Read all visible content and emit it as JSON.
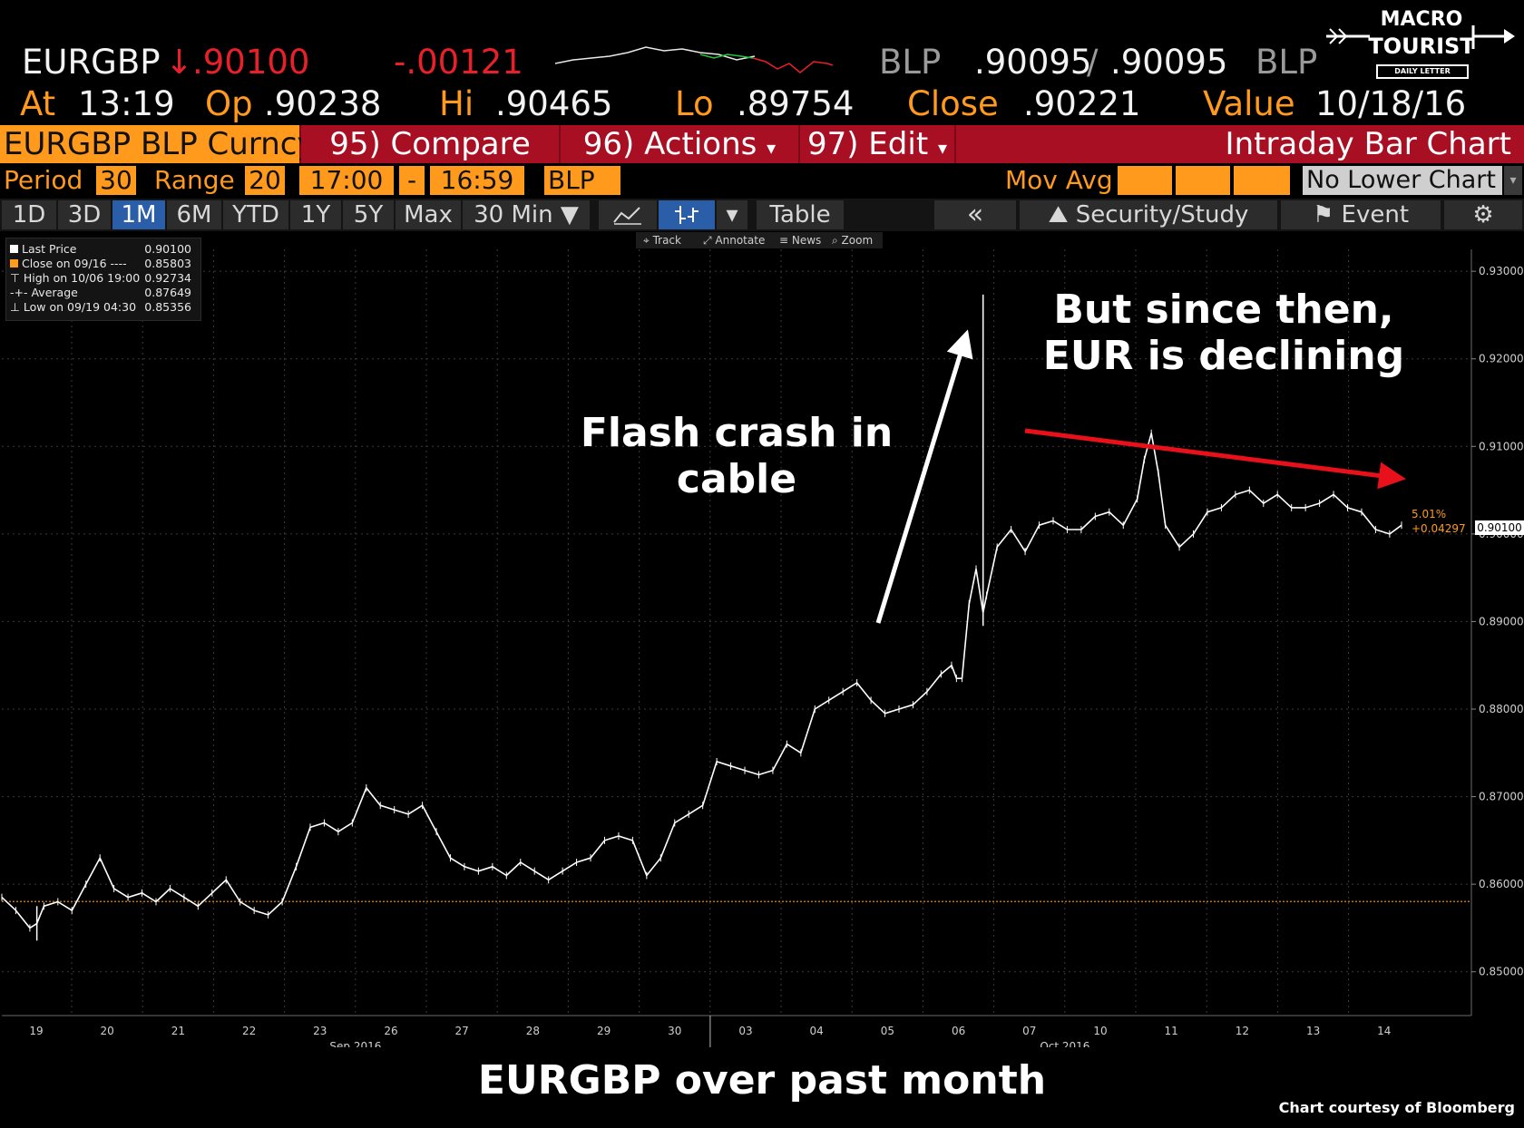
{
  "header": {
    "symbol": "EURGBP",
    "direction_arrow": "↓",
    "last": ".90100",
    "change": "-.00121",
    "bid_source": "BLP",
    "bid": ".90095",
    "separator": "/",
    "ask": ".90095",
    "ask_source": "BLP",
    "at_label": "At",
    "time": "13:19",
    "op_label": "Op",
    "open": ".90238",
    "hi_label": "Hi",
    "high": ".90465",
    "lo_label": "Lo",
    "low": ".89754",
    "close_label": "Close",
    "close": ".90221",
    "value_label": "Value",
    "value_date": "10/18/16"
  },
  "logo": {
    "line1": "MACRO",
    "line2": "TOURIST",
    "line3": "DAILY LETTER"
  },
  "function_bar": {
    "security": "EURGBP BLP Curncy",
    "compare": "95) Compare",
    "actions": "96) Actions",
    "edit": "97) Edit",
    "chart_type": "Intraday Bar Chart"
  },
  "period_bar": {
    "period_label": "Period",
    "period_value": "30",
    "range_label": "Range",
    "range_value": "20",
    "start_time": "17:00",
    "dash": "-",
    "end_time": "16:59",
    "source": "BLP",
    "mov_avg_label": "Mov Avg",
    "lower_chart": "No Lower Chart"
  },
  "tabs": {
    "ranges": [
      "1D",
      "3D",
      "1M",
      "6M",
      "YTD",
      "1Y",
      "5Y",
      "Max"
    ],
    "active": "1M",
    "interval": "30 Min ▼",
    "table": "Table",
    "back": "«",
    "security_study": "Security/Study",
    "event": "Event"
  },
  "chart_toolbar": {
    "track": "Track",
    "annotate": "Annotate",
    "news": "News",
    "zoom": "Zoom"
  },
  "legend": [
    {
      "label": "Last Price",
      "value": "0.90100"
    },
    {
      "label": "Close on 09/16 ----",
      "value": "0.85803"
    },
    {
      "label": "High on 10/06 19:00",
      "value": "0.92734"
    },
    {
      "label": "Average",
      "value": "0.87649"
    },
    {
      "label": "Low on 09/19 04:30",
      "value": "0.85356"
    }
  ],
  "annotations": {
    "flash_crash": [
      "Flash crash in",
      "cable"
    ],
    "since_then": [
      "But since then,",
      "EUR is declining"
    ]
  },
  "price_tag": "0.90100",
  "change_pct": "5.01%",
  "change_abs": "+0.04297",
  "footer": {
    "title": "EURGBP over past month",
    "credit": "Chart courtesy of Bloomberg"
  },
  "colors": {
    "background": "#000000",
    "accent_orange": "#ff9a1c",
    "bar_red": "#7a0a16",
    "tab_active": "#2a5ea8",
    "price": "#ffffff",
    "close_line": "#ff9a1c",
    "red_arrow": "#e8101a"
  },
  "chart_data": {
    "type": "line",
    "title": "",
    "ylim": [
      0.845,
      0.9325
    ],
    "y_ticks": [
      "0.85000",
      "0.86000",
      "0.87000",
      "0.88000",
      "0.89000",
      "0.90000",
      "0.91000",
      "0.92000",
      "0.93000"
    ],
    "x_ticks": [
      "19",
      "20",
      "21",
      "22",
      "23",
      "26",
      "27",
      "28",
      "29",
      "30",
      "03",
      "04",
      "05",
      "06",
      "07",
      "10",
      "11",
      "12",
      "13",
      "14"
    ],
    "month_labels": [
      "Sep 2016",
      "Oct 2016"
    ],
    "reference_line": {
      "name": "Close on 09/16",
      "value": 0.85803
    },
    "series": [
      {
        "name": "Last Price",
        "x": [
          0,
          0.2,
          0.4,
          0.5,
          0.6,
          0.8,
          1.0,
          1.2,
          1.4,
          1.6,
          1.8,
          2.0,
          2.2,
          2.4,
          2.6,
          2.8,
          3.0,
          3.2,
          3.4,
          3.6,
          3.8,
          4.0,
          4.2,
          4.4,
          4.6,
          4.8,
          5.0,
          5.2,
          5.4,
          5.6,
          5.8,
          6.0,
          6.2,
          6.4,
          6.6,
          6.8,
          7.0,
          7.2,
          7.4,
          7.6,
          7.8,
          8.0,
          8.2,
          8.4,
          8.6,
          8.8,
          9.0,
          9.2,
          9.4,
          9.6,
          9.8,
          10.0,
          10.2,
          10.4,
          10.6,
          10.8,
          11.0,
          11.2,
          11.4,
          11.6,
          11.8,
          12.0,
          12.2,
          12.4,
          12.6,
          12.8,
          13.0,
          13.2,
          13.4,
          13.55,
          13.62,
          13.7,
          13.8,
          13.9,
          14.0,
          14.05,
          14.2,
          14.4,
          14.6,
          14.8,
          15.0,
          15.2,
          15.4,
          15.6,
          15.8,
          16.0,
          16.2,
          16.3,
          16.4,
          16.5,
          16.6,
          16.8,
          17.0,
          17.2,
          17.4,
          17.6,
          17.8,
          18.0,
          18.2,
          18.4,
          18.6,
          18.8,
          19.0,
          19.2,
          19.4,
          19.6,
          19.8,
          19.97
        ],
        "y": [
          0.8585,
          0.857,
          0.855,
          0.8555,
          0.8575,
          0.858,
          0.857,
          0.86,
          0.863,
          0.8595,
          0.8585,
          0.859,
          0.858,
          0.8595,
          0.8585,
          0.8575,
          0.859,
          0.8605,
          0.858,
          0.857,
          0.8565,
          0.858,
          0.862,
          0.8665,
          0.867,
          0.866,
          0.867,
          0.871,
          0.869,
          0.8685,
          0.868,
          0.869,
          0.866,
          0.863,
          0.862,
          0.8615,
          0.862,
          0.861,
          0.8625,
          0.8615,
          0.8605,
          0.8615,
          0.8625,
          0.863,
          0.865,
          0.8655,
          0.865,
          0.861,
          0.863,
          0.867,
          0.868,
          0.869,
          0.874,
          0.8735,
          0.873,
          0.8725,
          0.873,
          0.876,
          0.875,
          0.88,
          0.881,
          0.882,
          0.883,
          0.881,
          0.8795,
          0.88,
          0.8805,
          0.882,
          0.884,
          0.885,
          0.8835,
          0.8835,
          0.892,
          0.896,
          0.891,
          0.893,
          0.8985,
          0.9005,
          0.898,
          0.901,
          0.9015,
          0.9005,
          0.9005,
          0.902,
          0.9025,
          0.901,
          0.904,
          0.9085,
          0.9115,
          0.907,
          0.901,
          0.8985,
          0.9,
          0.9025,
          0.903,
          0.9045,
          0.905,
          0.9035,
          0.9045,
          0.903,
          0.903,
          0.9035,
          0.9045,
          0.903,
          0.9025,
          0.9005,
          0.9,
          0.901
        ],
        "high": {
          "x": 14.0,
          "y": 0.92734
        },
        "low": {
          "x": 0.5,
          "y": 0.85356
        }
      }
    ]
  }
}
